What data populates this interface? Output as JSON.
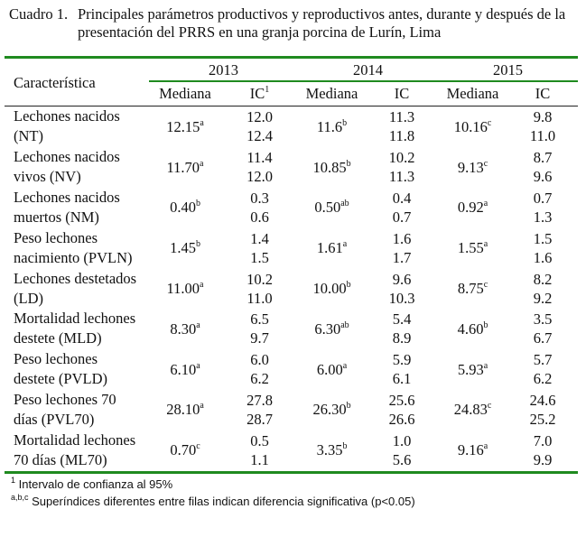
{
  "caption": {
    "label": "Cuadro 1.",
    "text": "Principales parámetros productivos y reproductivos antes, durante y después de la presentación del PRRS en una granja porcina de Lurín, Lima"
  },
  "header": {
    "characteristic": "Característica",
    "years": [
      "2013",
      "2014",
      "2015"
    ],
    "median": "Mediana",
    "ic": "IC",
    "ic_footnote_mark": "1"
  },
  "rows": [
    {
      "label": [
        "Lechones nacidos",
        "(NT)"
      ],
      "values": [
        {
          "m": "12.15",
          "s": "a",
          "ic": [
            "12.0",
            "12.4"
          ]
        },
        {
          "m": "11.6",
          "s": "b",
          "ic": [
            "11.3",
            "11.8"
          ]
        },
        {
          "m": "10.16",
          "s": "c",
          "ic": [
            "9.8",
            "11.0"
          ]
        }
      ]
    },
    {
      "label": [
        "Lechones nacidos",
        "vivos (NV)"
      ],
      "values": [
        {
          "m": "11.70",
          "s": "a",
          "ic": [
            "11.4",
            "12.0"
          ]
        },
        {
          "m": "10.85",
          "s": "b",
          "ic": [
            "10.2",
            "11.3"
          ]
        },
        {
          "m": "9.13",
          "s": "c",
          "ic": [
            "8.7",
            "9.6"
          ]
        }
      ]
    },
    {
      "label": [
        "Lechones nacidos",
        "muertos (NM)"
      ],
      "values": [
        {
          "m": "0.40",
          "s": "b",
          "ic": [
            "0.3",
            "0.6"
          ]
        },
        {
          "m": "0.50",
          "s": "ab",
          "ic": [
            "0.4",
            "0.7"
          ]
        },
        {
          "m": "0.92",
          "s": "a",
          "ic": [
            "0.7",
            "1.3"
          ]
        }
      ]
    },
    {
      "label": [
        "Peso lechones",
        "nacimiento (PVLN)"
      ],
      "values": [
        {
          "m": "1.45",
          "s": "b",
          "ic": [
            "1.4",
            "1.5"
          ]
        },
        {
          "m": "1.61",
          "s": "a",
          "ic": [
            "1.6",
            "1.7"
          ]
        },
        {
          "m": "1.55",
          "s": "a",
          "ic": [
            "1.5",
            "1.6"
          ]
        }
      ]
    },
    {
      "label": [
        "Lechones destetados",
        "(LD)"
      ],
      "values": [
        {
          "m": "11.00",
          "s": "a",
          "ic": [
            "10.2",
            "11.0"
          ]
        },
        {
          "m": "10.00",
          "s": "b",
          "ic": [
            "9.6",
            "10.3"
          ]
        },
        {
          "m": "8.75",
          "s": "c",
          "ic": [
            "8.2",
            "9.2"
          ]
        }
      ]
    },
    {
      "label": [
        "Mortalidad lechones",
        "destete (MLD)"
      ],
      "values": [
        {
          "m": "8.30",
          "s": "a",
          "ic": [
            "6.5",
            "9.7"
          ]
        },
        {
          "m": "6.30",
          "s": "ab",
          "ic": [
            "5.4",
            "8.9"
          ]
        },
        {
          "m": "4.60",
          "s": "b",
          "ic": [
            "3.5",
            "6.7"
          ]
        }
      ]
    },
    {
      "label": [
        "Peso lechones",
        "destete (PVLD)"
      ],
      "values": [
        {
          "m": "6.10",
          "s": "a",
          "ic": [
            "6.0",
            "6.2"
          ]
        },
        {
          "m": "6.00",
          "s": "a",
          "ic": [
            "5.9",
            "6.1"
          ]
        },
        {
          "m": "5.93",
          "s": "a",
          "ic": [
            "5.7",
            "6.2"
          ]
        }
      ]
    },
    {
      "label": [
        "Peso lechones 70",
        "días (PVL70)"
      ],
      "values": [
        {
          "m": "28.10",
          "s": "a",
          "ic": [
            "27.8",
            "28.7"
          ]
        },
        {
          "m": "26.30",
          "s": "b",
          "ic": [
            "25.6",
            "26.6"
          ]
        },
        {
          "m": "24.83",
          "s": "c",
          "ic": [
            "24.6",
            "25.2"
          ]
        }
      ]
    },
    {
      "label": [
        "Mortalidad lechones",
        "70 días (ML70)"
      ],
      "values": [
        {
          "m": "0.70",
          "s": "c",
          "ic": [
            "0.5",
            "1.1"
          ]
        },
        {
          "m": "3.35",
          "s": "b",
          "ic": [
            "1.0",
            "5.6"
          ]
        },
        {
          "m": "9.16",
          "s": "a",
          "ic": [
            "7.0",
            "9.9"
          ]
        }
      ]
    }
  ],
  "footnotes": [
    {
      "mark": "1",
      "text": "Intervalo de confianza al 95%"
    },
    {
      "mark": "a,b,c",
      "text": "Superíndices diferentes entre filas indican diferencia significativa (p<0.05)"
    }
  ],
  "colors": {
    "rule_green": "#1f8a1f"
  }
}
